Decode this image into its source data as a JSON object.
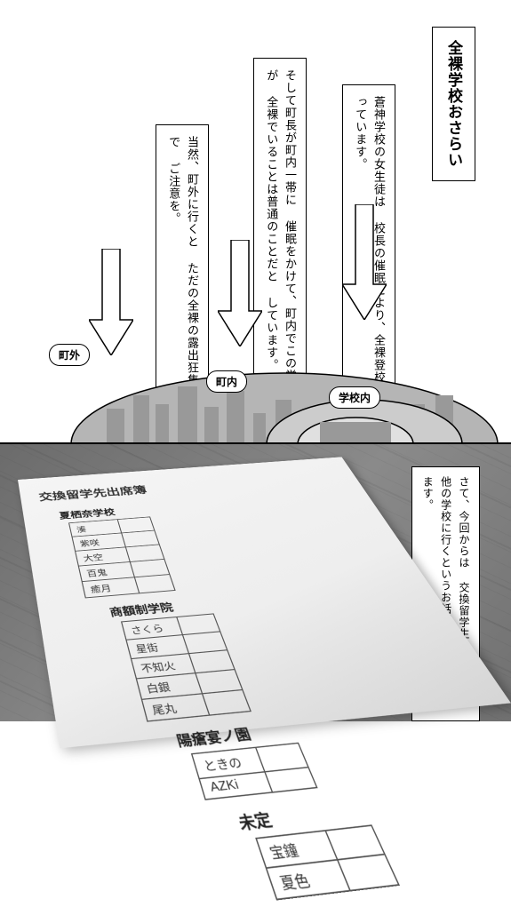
{
  "top": {
    "title": "全裸学校おさらい",
    "box2": "蒼神学校の女生徒は\n校長の催眠により、全裸登校\nとなっています。",
    "box3": "そして町長が町内一帯に\n催眠をかけて、町内でこの学校の生徒が\n全裸でいることは普通のことだと\nしています。",
    "box4": "当然、町外に行くと\nただの全裸の露出狂集団なので\nご注意を。",
    "zones": {
      "outside": "町外",
      "town": "町内",
      "school": "学校内"
    }
  },
  "bottom": {
    "caption": "さて、今回からは\n交換留学生として生徒が\n他の学校に行くというお話が\nメインとなります。",
    "paper_title": "交換留学先出席簿",
    "schools": [
      {
        "name": "夏栖奈学校",
        "students": [
          "湊",
          "紫咲",
          "大空",
          "百鬼",
          "癒月"
        ]
      },
      {
        "name": "商額制学院",
        "students": [
          "さくら",
          "星街",
          "不知火",
          "白銀",
          "尾丸"
        ]
      },
      {
        "name": "陽瘡宴ノ園",
        "students": [
          "ときの",
          "AZKi"
        ]
      },
      {
        "name": "未定",
        "students": [
          "宝鐘",
          "夏色"
        ]
      }
    ]
  }
}
